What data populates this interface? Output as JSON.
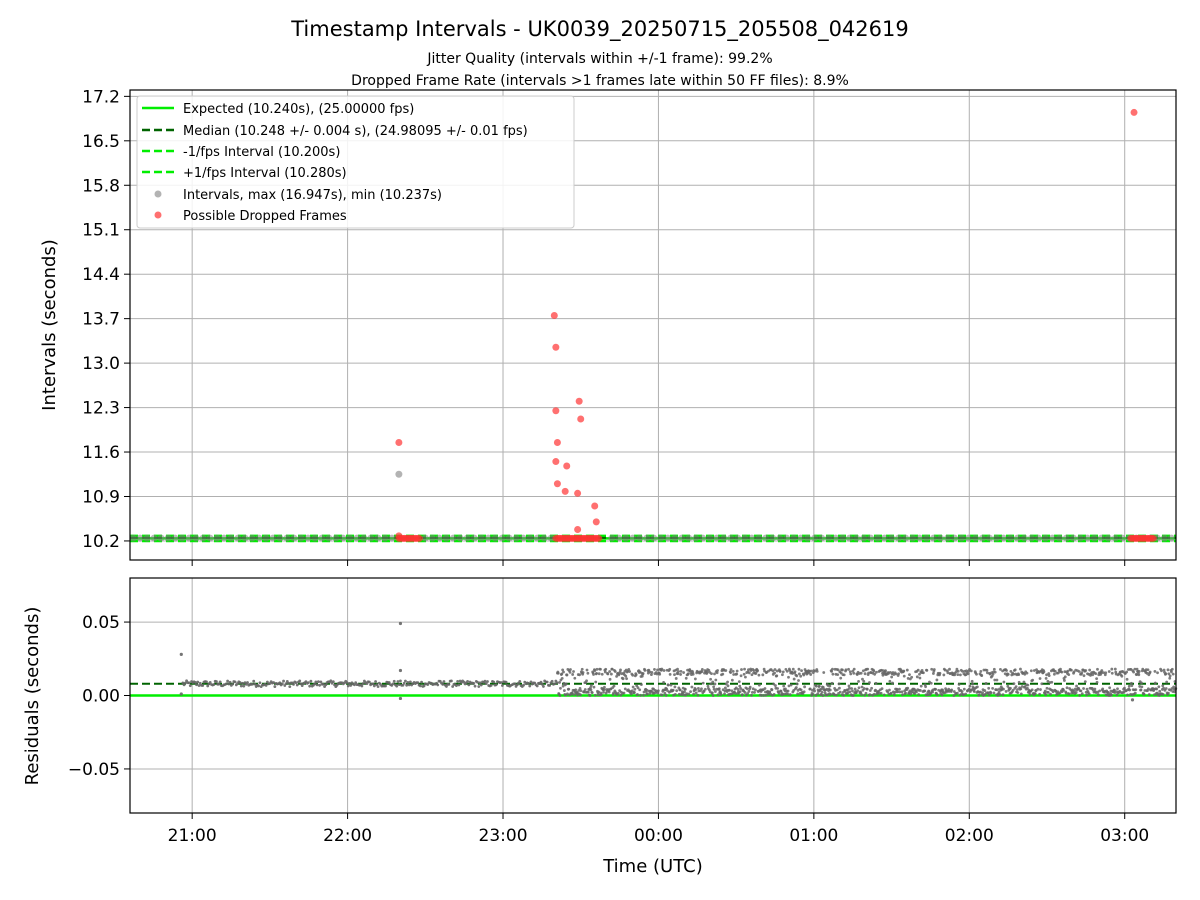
{
  "title": "Timestamp Intervals - UK0039_20250715_205508_042619",
  "subtitle1": "Jitter Quality (intervals within +/-1 frame): 99.2%",
  "subtitle2": "Dropped Frame Rate (intervals >1 frames late within 50 FF files): 8.9%",
  "legend": {
    "expected": "Expected (10.240s), (25.00000 fps)",
    "median": "Median (10.248 +/- 0.004 s), (24.98095 +/- 0.01 fps)",
    "minus": "-1/fps Interval (10.200s)",
    "plus": "+1/fps Interval (10.280s)",
    "intervals": "Intervals, max (16.947s), min (10.237s)",
    "dropped": "Possible Dropped Frames"
  },
  "colors": {
    "expected": "#00ee00",
    "median": "#006400",
    "intervals": "#808080",
    "dropped": "#ff3333",
    "grid": "#b0b0b0"
  },
  "chart_data": [
    {
      "type": "scatter",
      "panel": "top",
      "ylabel": "Intervals (seconds)",
      "xlabel": "",
      "ylim": [
        9.9,
        17.3
      ],
      "yticks": [
        10.2,
        10.9,
        11.6,
        12.3,
        13.0,
        13.7,
        14.4,
        15.1,
        15.8,
        16.5,
        17.2
      ],
      "ytick_labels": [
        "10.2",
        "10.9",
        "11.6",
        "12.3",
        "13.0",
        "13.7",
        "14.4",
        "15.1",
        "15.8",
        "16.5",
        "17.2"
      ],
      "x_unit": "hours after 20:00 UTC",
      "xlim": [
        0.6,
        7.33
      ],
      "hlines": {
        "expected": 10.24,
        "median": 10.248,
        "minus": 10.2,
        "plus": 10.28
      },
      "legend_position": "upper left",
      "grid": true,
      "series": [
        {
          "name": "Intervals, max (16.947s), min (10.237s)",
          "points": [
            [
              2.33,
              11.25
            ]
          ],
          "regular_bands": [
            [
              0.62,
              2.31
            ],
            [
              2.5,
              3.32
            ],
            [
              3.7,
              7.3
            ]
          ],
          "regular_value": 10.245
        },
        {
          "name": "Possible Dropped Frames",
          "points": [
            [
              2.33,
              11.75
            ],
            [
              2.33,
              10.28
            ],
            [
              3.33,
              13.75
            ],
            [
              3.34,
              13.25
            ],
            [
              3.34,
              12.25
            ],
            [
              3.35,
              11.75
            ],
            [
              3.34,
              11.45
            ],
            [
              3.35,
              11.1
            ],
            [
              3.4,
              10.98
            ],
            [
              3.41,
              11.38
            ],
            [
              3.48,
              10.95
            ],
            [
              3.49,
              12.4
            ],
            [
              3.5,
              12.12
            ],
            [
              3.48,
              10.38
            ],
            [
              3.59,
              10.75
            ],
            [
              3.6,
              10.5
            ],
            [
              7.06,
              16.947
            ]
          ],
          "dense_bands": [
            [
              2.33,
              2.47
            ],
            [
              3.34,
              3.62
            ],
            [
              7.04,
              7.19
            ]
          ],
          "dense_value": 10.24
        }
      ]
    },
    {
      "type": "scatter",
      "panel": "bottom",
      "xlabel": "Time (UTC)",
      "ylabel": "Residuals (seconds)",
      "ylim": [
        -0.08,
        0.08
      ],
      "yticks": [
        -0.05,
        0.0,
        0.05
      ],
      "ytick_labels": [
        "−0.05",
        "0.00",
        "0.05"
      ],
      "x_unit": "hours after 20:00 UTC",
      "xlim": [
        0.6,
        7.33
      ],
      "xticks": [
        1,
        2,
        3,
        4,
        5,
        6,
        7
      ],
      "xtick_labels": [
        "21:00",
        "22:00",
        "23:00",
        "00:00",
        "01:00",
        "02:00",
        "03:00"
      ],
      "hlines": {
        "expected": 0.0,
        "median": 0.008
      },
      "grid": true,
      "series": [
        {
          "name": "Residuals",
          "points": [
            [
              0.93,
              0.028
            ],
            [
              0.93,
              0.001
            ],
            [
              2.34,
              0.049
            ],
            [
              2.34,
              0.017
            ],
            [
              2.34,
              -0.002
            ],
            [
              7.05,
              -0.003
            ]
          ],
          "low_jitter_band": {
            "x": [
              0.94,
              3.35
            ],
            "y": [
              0.006,
              0.01
            ]
          },
          "high_jitter_band": {
            "x": [
              3.35,
              7.33
            ],
            "y": [
              0.0,
              0.018
            ]
          }
        }
      ]
    }
  ]
}
